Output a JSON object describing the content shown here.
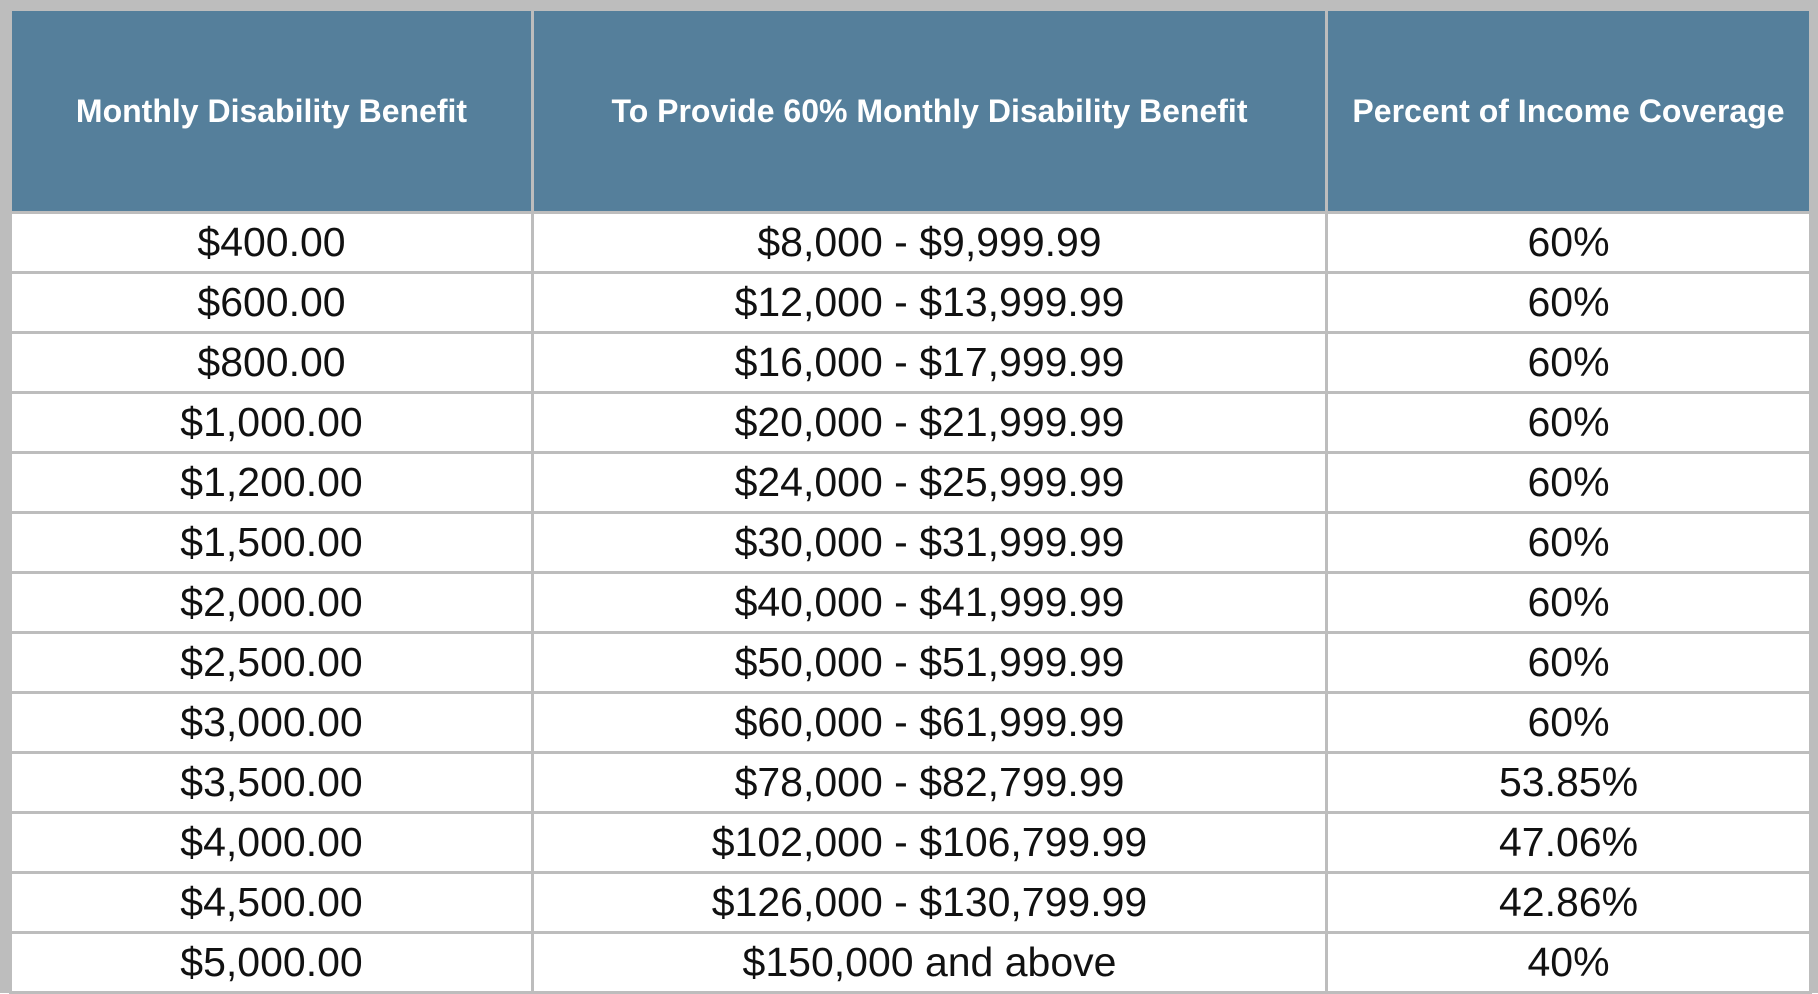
{
  "table": {
    "header": [
      "Monthly Disability Benefit",
      "To Provide 60% Monthly Disability Benefit",
      "Percent of Income Coverage"
    ],
    "rows": [
      [
        "$400.00",
        "$8,000 - $9,999.99",
        "60%"
      ],
      [
        "$600.00",
        "$12,000 - $13,999.99",
        "60%"
      ],
      [
        "$800.00",
        "$16,000 - $17,999.99",
        "60%"
      ],
      [
        "$1,000.00",
        "$20,000 - $21,999.99",
        "60%"
      ],
      [
        "$1,200.00",
        "$24,000 - $25,999.99",
        "60%"
      ],
      [
        "$1,500.00",
        "$30,000 - $31,999.99",
        "60%"
      ],
      [
        "$2,000.00",
        "$40,000 - $41,999.99",
        "60%"
      ],
      [
        "$2,500.00",
        "$50,000 - $51,999.99",
        "60%"
      ],
      [
        "$3,000.00",
        "$60,000 - $61,999.99",
        "60%"
      ],
      [
        "$3,500.00",
        "$78,000 - $82,799.99",
        "53.85%"
      ],
      [
        "$4,000.00",
        "$102,000 - $106,799.99",
        "47.06%"
      ],
      [
        "$4,500.00",
        "$126,000 - $130,799.99",
        "42.86%"
      ],
      [
        "$5,000.00",
        "$150,000 and above",
        "40%"
      ]
    ]
  }
}
